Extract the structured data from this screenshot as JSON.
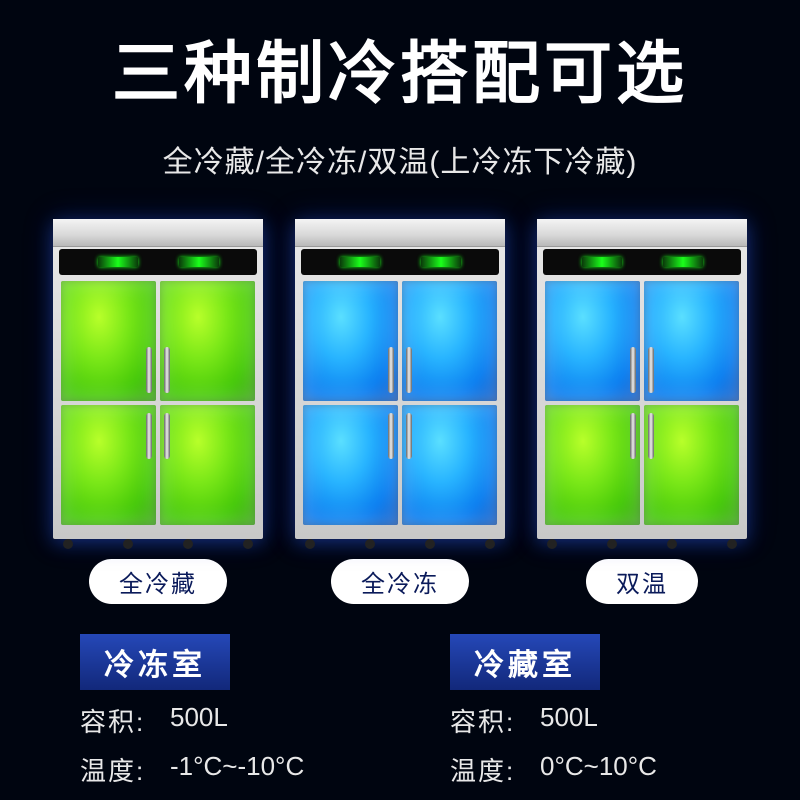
{
  "title": "三种制冷搭配可选",
  "subtitle": "全冷藏/全冷冻/双温(上冷冻下冷藏)",
  "colors": {
    "green": "#6de015",
    "blue": "#1a94f5",
    "bg": "#000510",
    "pill_bg": "#ffffff",
    "pill_text": "#0a1a5a",
    "spec_head_bg": "#1a3a9e"
  },
  "fridges": [
    {
      "label": "全冷藏",
      "door_colors": [
        "green",
        "green",
        "green",
        "green"
      ]
    },
    {
      "label": "全冷冻",
      "door_colors": [
        "blue",
        "blue",
        "blue",
        "blue"
      ]
    },
    {
      "label": "双温",
      "door_colors": [
        "blue",
        "blue",
        "green",
        "green"
      ]
    }
  ],
  "specs": [
    {
      "head": "冷冻室",
      "rows": [
        {
          "label": "容积:",
          "value": "500L"
        },
        {
          "label": "温度:",
          "value": "-1°C~-10°C"
        }
      ]
    },
    {
      "head": "冷藏室",
      "rows": [
        {
          "label": "容积:",
          "value": "500L"
        },
        {
          "label": "温度:",
          "value": "0°C~10°C"
        }
      ]
    }
  ]
}
